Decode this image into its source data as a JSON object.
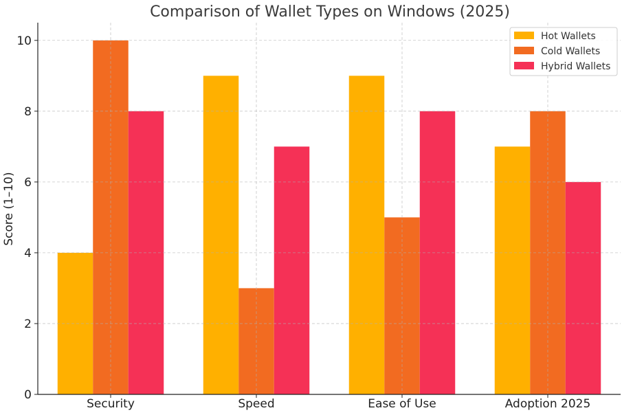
{
  "chart_data": {
    "type": "bar",
    "title": "Comparison of Wallet Types on Windows (2025)",
    "xlabel": "",
    "ylabel": "Score (1–10)",
    "categories": [
      "Security",
      "Speed",
      "Ease of Use",
      "Adoption 2025"
    ],
    "series": [
      {
        "name": "Hot Wallets",
        "values": [
          4,
          9,
          9,
          7
        ],
        "color": "#FFB000"
      },
      {
        "name": "Cold Wallets",
        "values": [
          10,
          3,
          5,
          8
        ],
        "color": "#F26B21"
      },
      {
        "name": "Hybrid Wallets",
        "values": [
          8,
          7,
          8,
          6
        ],
        "color": "#F53156"
      }
    ],
    "ylim": [
      0,
      10.5
    ],
    "yticks": [
      0,
      2,
      4,
      6,
      8,
      10
    ],
    "grid": true,
    "legend_position": "top-right"
  }
}
